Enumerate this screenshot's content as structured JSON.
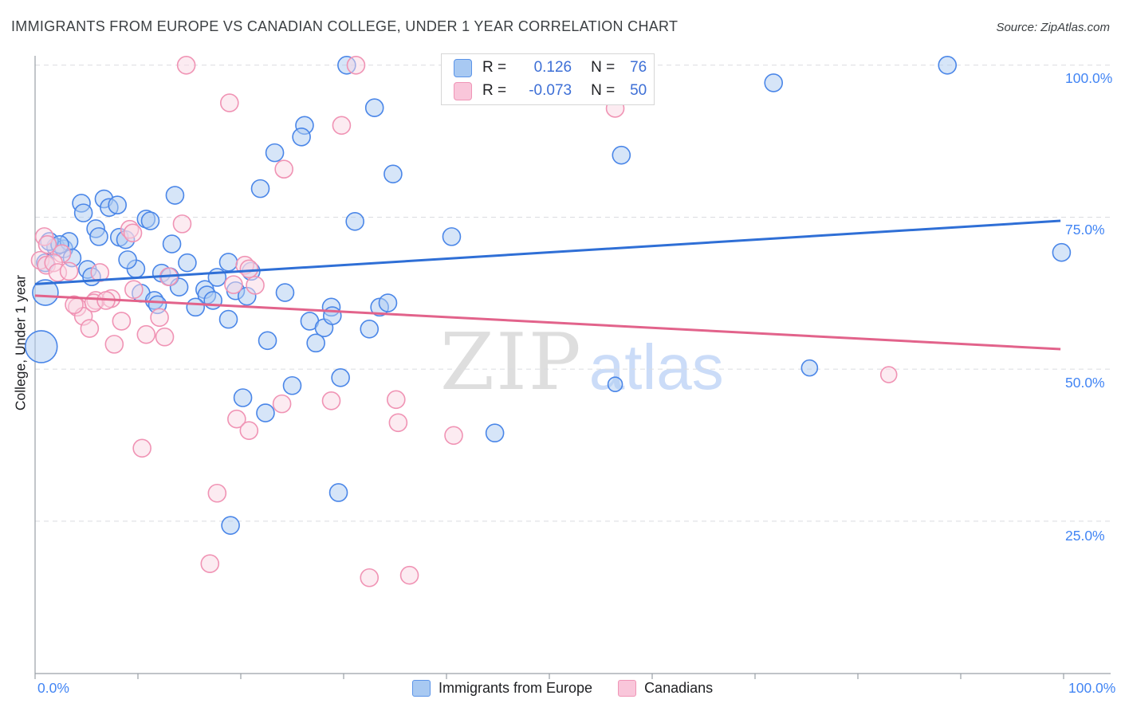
{
  "title": "IMMIGRANTS FROM EUROPE VS CANADIAN COLLEGE, UNDER 1 YEAR CORRELATION CHART",
  "source": "Source: ZipAtlas.com",
  "watermark": {
    "zip": "ZIP",
    "atlas": "atlas"
  },
  "y_axis": {
    "label": "College, Under 1 year",
    "ticks": [
      "100.0%",
      "75.0%",
      "50.0%",
      "25.0%"
    ]
  },
  "x_axis": {
    "min_label": "0.0%",
    "max_label": "100.0%"
  },
  "legend": {
    "rows": [
      {
        "series": "Immigrants from Europe",
        "r_label": "R =",
        "r_value": "0.126",
        "n_label": "N =",
        "n_value": "76"
      },
      {
        "series": "Canadians",
        "r_label": "R =",
        "r_value": "-0.073",
        "n_label": "N =",
        "n_value": "50"
      }
    ]
  },
  "bottom_legend": [
    {
      "label": "Immigrants from Europe"
    },
    {
      "label": "Canadians"
    }
  ],
  "colors": {
    "blue_stroke": "#4a86e8",
    "blue_fill": "#aecbf2",
    "pink_stroke": "#f093b4",
    "pink_fill": "#fad7e4",
    "blue_trend": "#2f6fd6",
    "pink_trend": "#e2638b",
    "grid": "#dadce0",
    "axis": "#9aa0a6",
    "tick_label": "#4285f4"
  },
  "chart_data": {
    "type": "scatter",
    "xlabel": "Immigrants from Europe (%)",
    "ylabel": "College, Under 1 year (%)",
    "xlim": [
      0,
      100
    ],
    "ylim": [
      0,
      100
    ],
    "grid_y": [
      100,
      75,
      50,
      25
    ],
    "x_tick_step": 10,
    "legend_position": "bottom-center",
    "series": [
      {
        "name": "Immigrants from Europe",
        "id": "blue",
        "r": 0.126,
        "n": 76,
        "stroke": "#4a86e8",
        "fill": "#aecbf2",
        "trend_color": "#2f6fd6",
        "trend": {
          "x1": 0,
          "y1": 64.0,
          "x2": 99.7,
          "y2": 74.4
        },
        "points": [
          [
            4.5,
            77.3
          ],
          [
            6.7,
            78.0
          ],
          [
            7.2,
            76.6
          ],
          [
            8.0,
            77.0
          ],
          [
            13.6,
            78.6
          ],
          [
            21.9,
            79.7
          ],
          [
            10.8,
            74.7
          ],
          [
            11.2,
            74.4
          ],
          [
            4.7,
            75.7
          ],
          [
            5.9,
            73.1
          ],
          [
            2.0,
            70.1
          ],
          [
            2.8,
            69.8
          ],
          [
            3.3,
            71.0
          ],
          [
            1.4,
            71.0
          ],
          [
            2.4,
            70.5
          ],
          [
            1.0,
            67.5
          ],
          [
            5.1,
            66.4
          ],
          [
            5.5,
            65.2
          ],
          [
            1.0,
            62.6,
            16
          ],
          [
            0.6,
            53.7,
            20
          ],
          [
            8.2,
            71.7
          ],
          [
            8.8,
            71.3
          ],
          [
            13.3,
            70.6
          ],
          [
            14.8,
            67.5
          ],
          [
            9.8,
            66.5
          ],
          [
            12.3,
            65.8
          ],
          [
            13.1,
            65.2
          ],
          [
            18.8,
            67.6
          ],
          [
            17.7,
            65.1
          ],
          [
            21.0,
            66.1
          ],
          [
            19.5,
            62.9
          ],
          [
            20.6,
            62.0
          ],
          [
            10.3,
            62.5
          ],
          [
            11.6,
            61.3
          ],
          [
            11.9,
            60.6
          ],
          [
            16.5,
            63.1
          ],
          [
            16.7,
            62.2
          ],
          [
            17.3,
            61.3
          ],
          [
            24.3,
            62.6
          ],
          [
            28.8,
            60.2
          ],
          [
            15.6,
            60.2
          ],
          [
            30.3,
            100
          ],
          [
            47.4,
            100
          ],
          [
            33.0,
            93.0
          ],
          [
            34.8,
            82.1
          ],
          [
            31.1,
            74.3
          ],
          [
            40.5,
            71.8
          ],
          [
            71.8,
            97.1
          ],
          [
            88.7,
            100
          ],
          [
            57.0,
            85.2
          ],
          [
            26.2,
            90.1
          ],
          [
            25.9,
            88.2
          ],
          [
            23.3,
            85.6
          ],
          [
            18.8,
            58.2
          ],
          [
            22.6,
            54.7
          ],
          [
            26.7,
            57.9
          ],
          [
            28.1,
            56.8
          ],
          [
            28.9,
            58.8
          ],
          [
            27.3,
            54.3
          ],
          [
            32.5,
            56.6
          ],
          [
            33.5,
            60.2
          ],
          [
            34.3,
            60.9
          ],
          [
            29.7,
            48.6
          ],
          [
            25.0,
            47.3
          ],
          [
            20.2,
            45.3
          ],
          [
            22.4,
            42.8
          ],
          [
            44.7,
            39.5
          ],
          [
            29.5,
            29.7
          ],
          [
            19.0,
            24.3
          ],
          [
            56.4,
            47.5,
            9
          ],
          [
            75.3,
            50.2,
            10
          ],
          [
            99.8,
            69.2
          ],
          [
            3.6,
            68.3
          ],
          [
            6.2,
            71.8
          ],
          [
            14.0,
            63.5
          ],
          [
            9.0,
            68.0
          ]
        ]
      },
      {
        "name": "Canadians",
        "id": "pink",
        "r": -0.073,
        "n": 50,
        "stroke": "#f093b4",
        "fill": "#fad7e4",
        "trend_color": "#e2638b",
        "trend": {
          "x1": 0,
          "y1": 62.1,
          "x2": 99.7,
          "y2": 53.3
        },
        "points": [
          [
            14.7,
            100
          ],
          [
            31.2,
            100
          ],
          [
            18.9,
            93.8
          ],
          [
            56.4,
            92.9
          ],
          [
            29.8,
            90.1
          ],
          [
            24.2,
            82.9
          ],
          [
            0.9,
            71.8
          ],
          [
            1.2,
            70.5
          ],
          [
            0.5,
            67.9
          ],
          [
            1.1,
            67.1
          ],
          [
            2.6,
            69.0
          ],
          [
            1.8,
            67.5
          ],
          [
            2.2,
            65.9
          ],
          [
            3.3,
            66.1
          ],
          [
            6.3,
            65.9
          ],
          [
            9.2,
            73.0
          ],
          [
            9.5,
            72.4
          ],
          [
            14.3,
            73.9
          ],
          [
            4.1,
            60.2
          ],
          [
            4.7,
            58.7
          ],
          [
            5.3,
            56.7
          ],
          [
            5.9,
            61.3
          ],
          [
            7.4,
            61.6
          ],
          [
            9.6,
            63.1
          ],
          [
            13.0,
            65.2
          ],
          [
            20.4,
            67.1
          ],
          [
            20.8,
            66.5
          ],
          [
            19.3,
            63.9
          ],
          [
            21.4,
            63.8
          ],
          [
            3.8,
            60.6
          ],
          [
            5.7,
            60.9
          ],
          [
            6.9,
            61.3
          ],
          [
            8.4,
            57.9
          ],
          [
            10.8,
            55.7
          ],
          [
            12.1,
            58.5
          ],
          [
            12.6,
            55.3
          ],
          [
            7.7,
            54.1
          ],
          [
            19.6,
            41.8
          ],
          [
            20.8,
            39.9
          ],
          [
            24.0,
            44.3
          ],
          [
            28.8,
            44.8
          ],
          [
            35.1,
            45.0
          ],
          [
            35.3,
            41.2
          ],
          [
            40.7,
            39.1
          ],
          [
            10.4,
            37.0
          ],
          [
            17.7,
            29.6
          ],
          [
            17.0,
            18.0
          ],
          [
            32.5,
            15.7
          ],
          [
            36.4,
            16.1
          ],
          [
            83.0,
            49.1,
            10
          ]
        ]
      }
    ]
  }
}
